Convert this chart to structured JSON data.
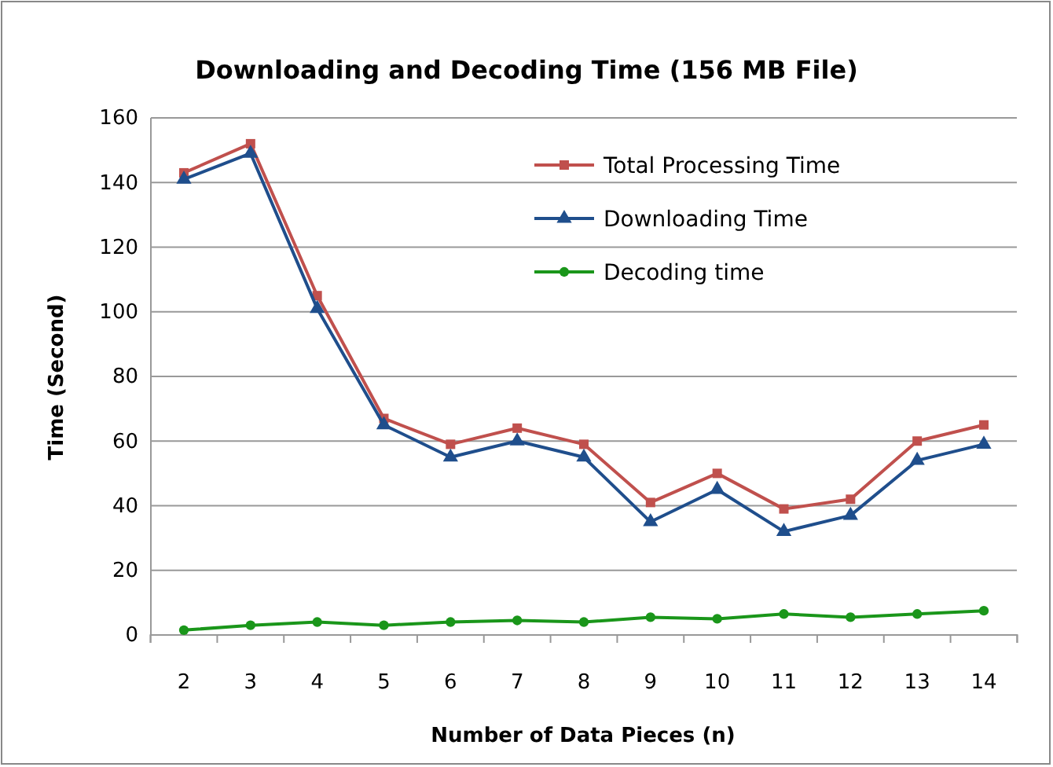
{
  "chart_data": {
    "type": "line",
    "title": "Downloading and Decoding Time (156 MB File)",
    "xlabel": "Number of Data Pieces (n)",
    "ylabel": "Time (Second)",
    "categories": [
      "2",
      "3",
      "4",
      "5",
      "6",
      "7",
      "8",
      "9",
      "10",
      "11",
      "12",
      "13",
      "14"
    ],
    "series": [
      {
        "name": "Total Processing Time",
        "color": "#c0504d",
        "marker": "square",
        "values": [
          143,
          152,
          105,
          67,
          59,
          64,
          59,
          41,
          50,
          39,
          42,
          60,
          65
        ]
      },
      {
        "name": "Downloading Time",
        "color": "#1f4e8c",
        "marker": "triangle",
        "values": [
          141,
          149,
          101,
          65,
          55,
          60,
          55,
          35,
          45,
          32,
          37,
          54,
          59
        ]
      },
      {
        "name": "Decoding time",
        "color": "#1a961a",
        "marker": "circle",
        "values": [
          1.5,
          3,
          4,
          3,
          4,
          4.5,
          4,
          5.5,
          5,
          6.5,
          5.5,
          6.5,
          7.5
        ]
      }
    ],
    "ylim": [
      0,
      160
    ],
    "yticks": [
      0,
      20,
      40,
      60,
      80,
      100,
      120,
      140,
      160
    ],
    "grid": "y",
    "legend": "top right",
    "line_style": "solid"
  }
}
